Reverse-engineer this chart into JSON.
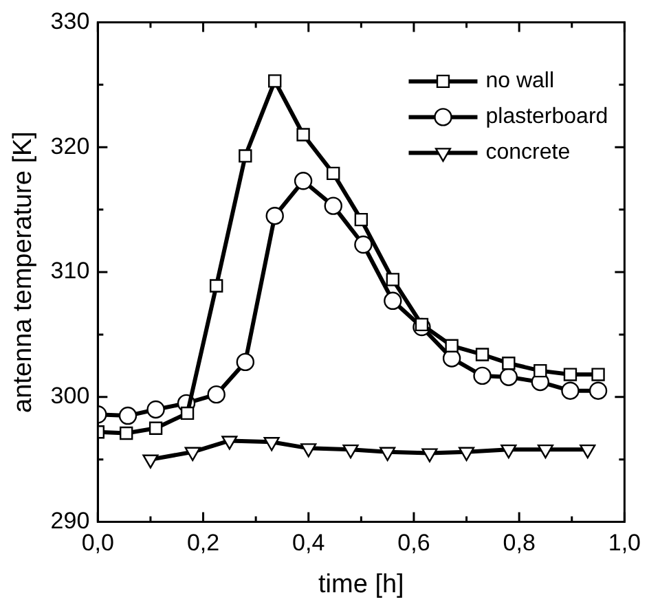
{
  "chart_data": {
    "type": "line",
    "xlabel": "time [h]",
    "ylabel": "antenna temperature [K]",
    "xlim": [
      0,
      1
    ],
    "ylim": [
      290,
      330
    ],
    "xticks": [
      {
        "value": 0,
        "label": "0,0"
      },
      {
        "value": 0.1,
        "label": null
      },
      {
        "value": 0.2,
        "label": "0,2"
      },
      {
        "value": 0.3,
        "label": null
      },
      {
        "value": 0.4,
        "label": "0,4"
      },
      {
        "value": 0.5,
        "label": null
      },
      {
        "value": 0.6,
        "label": "0,6"
      },
      {
        "value": 0.7,
        "label": null
      },
      {
        "value": 0.8,
        "label": "0,8"
      },
      {
        "value": 0.9,
        "label": null
      },
      {
        "value": 1,
        "label": "1,0"
      }
    ],
    "yticks": [
      290,
      {
        "value": 295,
        "label": null
      },
      300,
      {
        "value": 305,
        "label": null
      },
      310,
      {
        "value": 315,
        "label": null
      },
      320,
      {
        "value": 325,
        "label": null
      },
      330
    ],
    "grid": false,
    "legend": "top right",
    "line_style": "solid",
    "series": [
      {
        "name": "no wall",
        "color": "#000000",
        "marker": "square",
        "x": [
          0,
          0.054,
          0.11,
          0.17,
          0.225,
          0.28,
          0.336,
          0.39,
          0.447,
          0.5,
          0.56,
          0.615,
          0.672,
          0.73,
          0.78,
          0.84,
          0.897,
          0.95
        ],
        "values": [
          297.2,
          297.1,
          297.5,
          298.7,
          308.9,
          319.3,
          325.3,
          321.0,
          317.9,
          314.2,
          309.4,
          305.8,
          304.1,
          303.4,
          302.7,
          302.1,
          301.8,
          301.8
        ]
      },
      {
        "name": "plasterboard",
        "color": "#000000",
        "marker": "circle",
        "x": [
          0,
          0.057,
          0.11,
          0.168,
          0.225,
          0.28,
          0.336,
          0.39,
          0.447,
          0.504,
          0.56,
          0.615,
          0.672,
          0.73,
          0.78,
          0.84,
          0.897,
          0.95
        ],
        "values": [
          298.6,
          298.5,
          299.0,
          299.5,
          300.2,
          302.8,
          314.5,
          317.3,
          315.3,
          312.2,
          307.7,
          305.6,
          303.1,
          301.7,
          301.6,
          301.2,
          300.5,
          300.5
        ]
      },
      {
        "name": "concrete",
        "color": "#000000",
        "marker": "triangle",
        "x": [
          0.1,
          0.18,
          0.25,
          0.33,
          0.4,
          0.48,
          0.55,
          0.63,
          0.7,
          0.78,
          0.85,
          0.93
        ],
        "values": [
          295.0,
          295.6,
          296.5,
          296.4,
          295.9,
          295.8,
          295.6,
          295.5,
          295.6,
          295.8,
          295.8,
          295.8
        ]
      }
    ]
  }
}
